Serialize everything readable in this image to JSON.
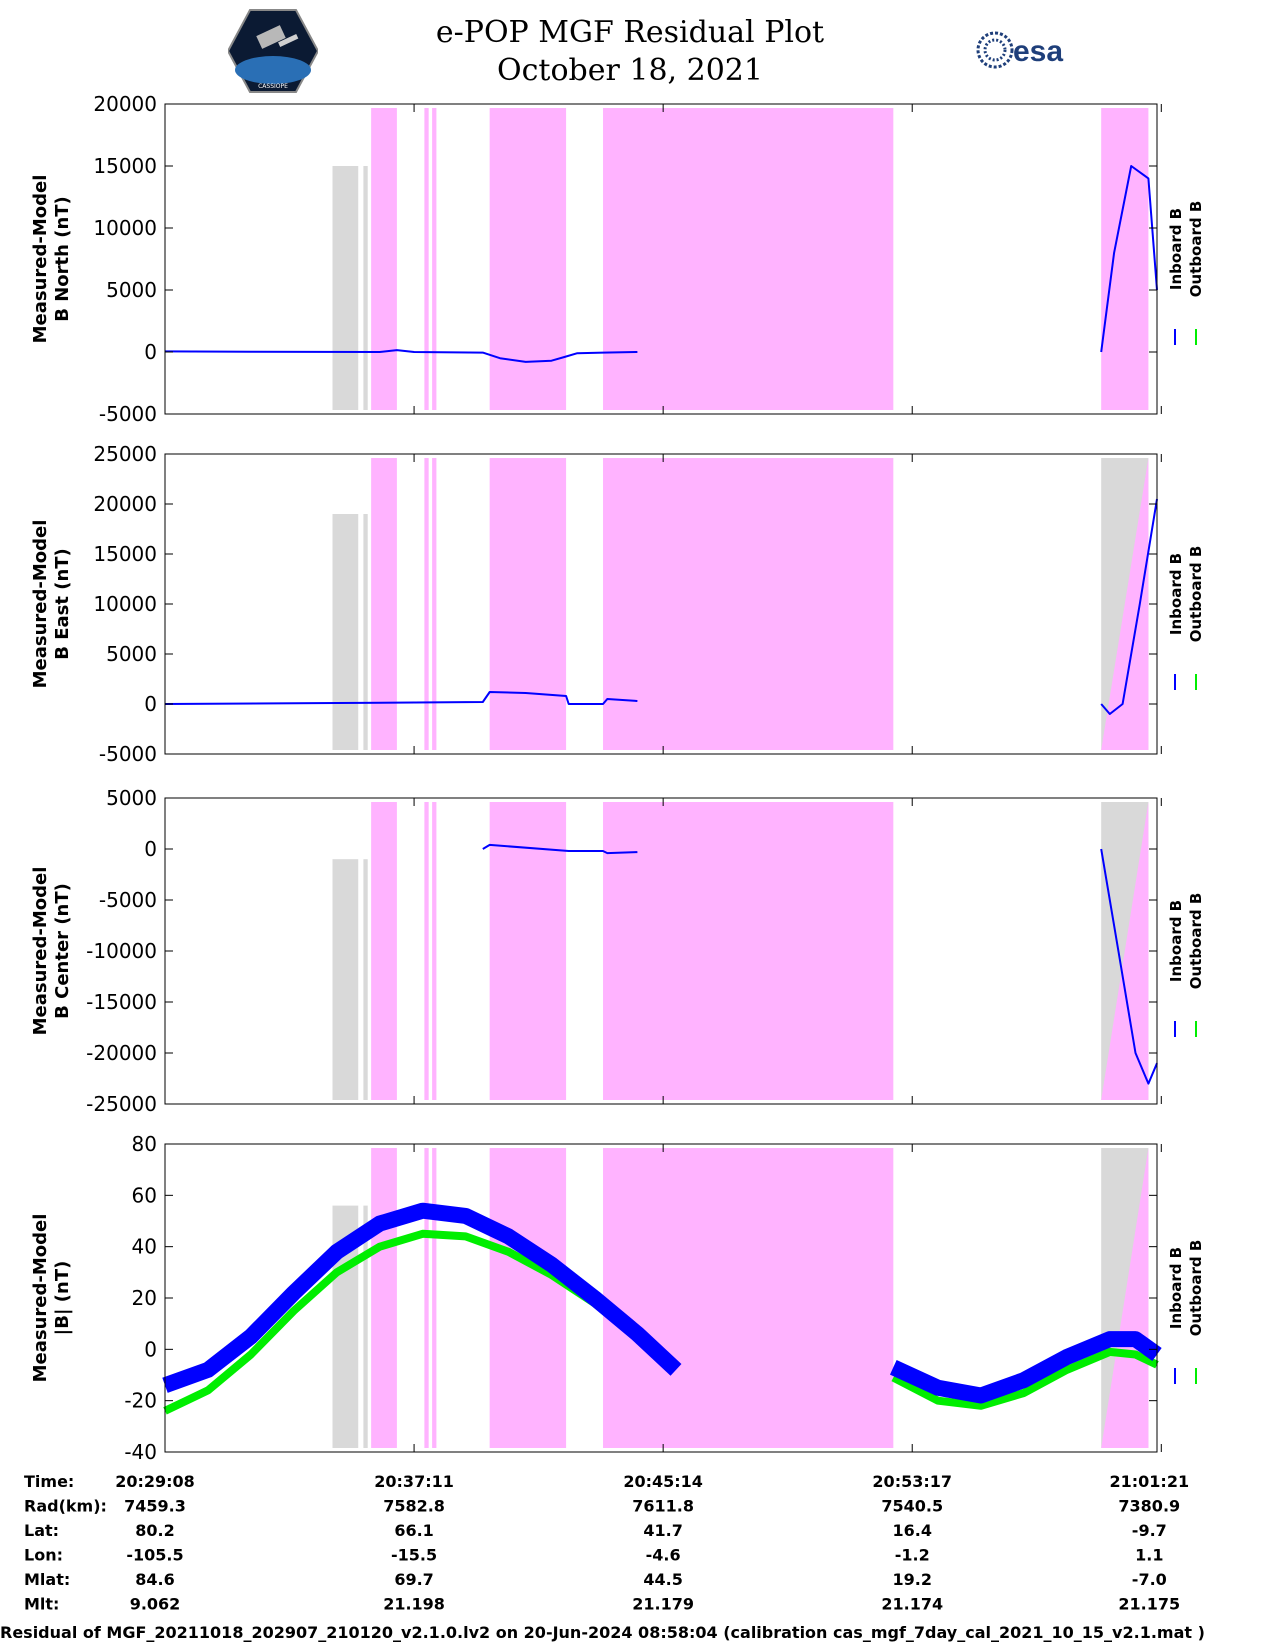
{
  "header": {
    "title": "e-POP MGF Residual Plot",
    "date": "October 18, 2021",
    "esa_logo_text": "esa",
    "mission_logo_text": "CASSIOPE"
  },
  "colors": {
    "inboard": "#0000ff",
    "outboard": "#00ee00",
    "pink_shade": "#ffb3ff",
    "gray_shade": "#d9d9d9"
  },
  "shading": {
    "gray": [
      [
        20.95,
        21.25
      ],
      [
        21.31,
        21.36
      ]
    ],
    "pink": [
      [
        21.4,
        21.7
      ],
      [
        22.02,
        22.07
      ],
      [
        22.11,
        22.16
      ],
      [
        22.78,
        23.67
      ],
      [
        24.1,
        27.48
      ],
      [
        29.9,
        30.45
      ]
    ],
    "end_gray_panels": [
      1,
      2,
      3
    ]
  },
  "legend": {
    "inboard": "Inboard B",
    "outboard": "Outboard B"
  },
  "chart_data": [
    {
      "type": "line",
      "ylabel_line1": "Measured-Model",
      "ylabel_line2": "B North (nT)",
      "ylim": [
        -5000,
        20000
      ],
      "yticks": [
        -5000,
        0,
        5000,
        10000,
        15000,
        20000
      ],
      "series": [
        {
          "name": "Inboard B",
          "points": [
            [
              19.0,
              50
            ],
            [
              20.0,
              20
            ],
            [
              21.5,
              0
            ],
            [
              21.7,
              150
            ],
            [
              21.9,
              0
            ],
            [
              22.7,
              -50
            ],
            [
              22.9,
              -500
            ],
            [
              23.2,
              -800
            ],
            [
              23.5,
              -700
            ],
            [
              23.65,
              -400
            ],
            [
              23.8,
              -100
            ],
            [
              24.1,
              -50
            ],
            [
              24.5,
              0
            ],
            [
              27.45,
              0
            ],
            [
              29.9,
              0
            ],
            [
              30.05,
              8000
            ],
            [
              30.25,
              15000
            ],
            [
              30.45,
              14000
            ],
            [
              30.55,
              5000
            ]
          ]
        }
      ]
    },
    {
      "type": "line",
      "ylabel_line1": "Measured-Model",
      "ylabel_line2": "B East (nT)",
      "ylim": [
        -5000,
        25000
      ],
      "yticks": [
        -5000,
        0,
        5000,
        10000,
        15000,
        20000,
        25000
      ],
      "series": [
        {
          "name": "Inboard B",
          "points": [
            [
              19.0,
              0
            ],
            [
              21.0,
              100
            ],
            [
              22.7,
              200
            ],
            [
              22.78,
              1200
            ],
            [
              23.2,
              1100
            ],
            [
              23.67,
              800
            ],
            [
              23.7,
              0
            ],
            [
              24.1,
              0
            ],
            [
              24.15,
              500
            ],
            [
              24.5,
              300
            ],
            [
              27.48,
              -100
            ],
            [
              29.9,
              0
            ],
            [
              30.0,
              -1000
            ],
            [
              30.15,
              0
            ],
            [
              30.35,
              10000
            ],
            [
              30.55,
              20500
            ]
          ]
        }
      ]
    },
    {
      "type": "line",
      "ylabel_line1": "Measured-Model",
      "ylabel_line2": "B Center (nT)",
      "ylim": [
        -25000,
        5000
      ],
      "yticks": [
        -25000,
        -20000,
        -15000,
        -10000,
        -5000,
        0,
        5000
      ],
      "series": [
        {
          "name": "Inboard B",
          "points": [
            [
              19.0,
              0
            ],
            [
              22.7,
              0
            ],
            [
              22.78,
              400
            ],
            [
              23.7,
              -200
            ],
            [
              24.1,
              -200
            ],
            [
              24.15,
              -400
            ],
            [
              24.5,
              -300
            ],
            [
              27.48,
              0
            ],
            [
              29.9,
              0
            ],
            [
              30.1,
              -10000
            ],
            [
              30.3,
              -20000
            ],
            [
              30.45,
              -23000
            ],
            [
              30.55,
              -21000
            ]
          ]
        }
      ]
    },
    {
      "type": "line",
      "ylabel_line1": "Measured-Model",
      "ylabel_line2": "|B| (nT)",
      "ylim": [
        -40,
        80
      ],
      "yticks": [
        -40,
        -20,
        0,
        20,
        40,
        60,
        80
      ],
      "series": [
        {
          "name": "Inboard B",
          "points": [
            [
              19.0,
              -14
            ],
            [
              19.5,
              -8
            ],
            [
              20.0,
              5
            ],
            [
              20.5,
              22
            ],
            [
              21.0,
              38
            ],
            [
              21.5,
              49
            ],
            [
              22.0,
              54
            ],
            [
              22.5,
              52
            ],
            [
              23.0,
              44
            ],
            [
              23.5,
              33
            ],
            [
              24.0,
              20
            ],
            [
              24.5,
              6
            ],
            [
              24.95,
              -8
            ],
            [
              27.48,
              -7
            ],
            [
              28.0,
              -15
            ],
            [
              28.5,
              -18
            ],
            [
              29.0,
              -12
            ],
            [
              29.5,
              -3
            ],
            [
              30.0,
              4
            ],
            [
              30.3,
              4
            ],
            [
              30.55,
              -2
            ]
          ]
        },
        {
          "name": "Outboard B",
          "points": [
            [
              19.0,
              -24
            ],
            [
              19.5,
              -16
            ],
            [
              20.0,
              -2
            ],
            [
              20.5,
              15
            ],
            [
              21.0,
              30
            ],
            [
              21.5,
              40
            ],
            [
              22.0,
              45
            ],
            [
              22.5,
              44
            ],
            [
              23.0,
              38
            ],
            [
              23.5,
              29
            ],
            [
              24.0,
              18
            ],
            [
              24.5,
              5
            ],
            [
              24.95,
              -6
            ],
            [
              27.48,
              -11
            ],
            [
              28.0,
              -20
            ],
            [
              28.5,
              -22
            ],
            [
              29.0,
              -17
            ],
            [
              29.5,
              -8
            ],
            [
              30.0,
              -1
            ],
            [
              30.3,
              -2
            ],
            [
              30.55,
              -6
            ]
          ]
        }
      ]
    }
  ],
  "x_axis": {
    "xlim": [
      19.0,
      30.55
    ],
    "ticks": [
      19.0,
      21.9,
      24.8,
      27.7,
      30.6
    ]
  },
  "ephemeris": {
    "labels": [
      "Time:",
      "Rad(km):",
      "Lat:",
      "Lon:",
      "Mlat:",
      "Mlt:"
    ],
    "columns": [
      [
        "20:29:08",
        "7459.3",
        "80.2",
        "-105.5",
        "84.6",
        "9.062"
      ],
      [
        "20:37:11",
        "7582.8",
        "66.1",
        "-15.5",
        "69.7",
        "21.198"
      ],
      [
        "20:45:14",
        "7611.8",
        "41.7",
        "-4.6",
        "44.5",
        "21.179"
      ],
      [
        "20:53:17",
        "7540.5",
        "16.4",
        "-1.2",
        "19.2",
        "21.174"
      ],
      [
        "21:01:21",
        "7380.9",
        "-9.7",
        "1.1",
        "-7.0",
        "21.175"
      ]
    ]
  },
  "footer": "Residual of MGF_20211018_202907_210120_v2.1.0.lv2 on 20-Jun-2024 08:58:04 (calibration cas_mgf_7day_cal_2021_10_15_v2.1.mat )"
}
